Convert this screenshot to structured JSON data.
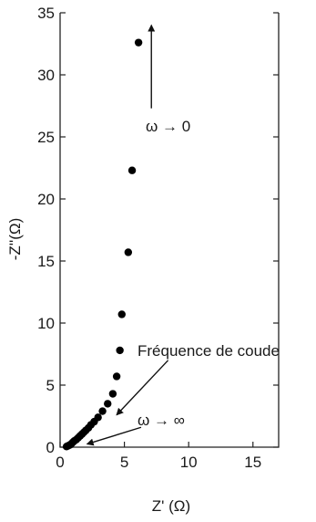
{
  "chart_data": {
    "type": "scatter",
    "xlabel": "Z' (Ω)",
    "ylabel": "-Z''(Ω)",
    "xlim": [
      0,
      17
    ],
    "ylim": [
      0,
      35
    ],
    "xticks": [
      0,
      5,
      10,
      15
    ],
    "yticks": [
      0,
      5,
      10,
      15,
      20,
      25,
      30,
      35
    ],
    "grid": false,
    "marker_color": "#000000",
    "series": [
      {
        "x": [
          0.5,
          0.6,
          0.7,
          0.8,
          0.9,
          1.0,
          1.1,
          1.25,
          1.4,
          1.55,
          1.7,
          1.85,
          2.0,
          2.2,
          2.4,
          2.65,
          2.95,
          3.3,
          3.7,
          4.1,
          4.4,
          4.65,
          4.8,
          5.3,
          5.6,
          6.1
        ],
        "y": [
          0.05,
          0.1,
          0.15,
          0.2,
          0.3,
          0.4,
          0.5,
          0.6,
          0.75,
          0.9,
          1.05,
          1.2,
          1.35,
          1.55,
          1.8,
          2.05,
          2.4,
          2.9,
          3.5,
          4.3,
          5.7,
          7.8,
          10.7,
          15.7,
          22.3,
          32.6
        ]
      }
    ],
    "annotations": [
      {
        "text": "ω → 0",
        "arrow_from": [
          7.1,
          27.3
        ],
        "arrow_to": [
          7.1,
          34.0
        ]
      },
      {
        "text": "Fréquence de coude",
        "arrow_from": [
          8.4,
          7.0
        ],
        "arrow_to": [
          4.4,
          2.6
        ]
      },
      {
        "text": "ω → ∞",
        "arrow_from": [
          6.3,
          1.6
        ],
        "arrow_to": [
          2.1,
          0.25
        ]
      }
    ]
  }
}
